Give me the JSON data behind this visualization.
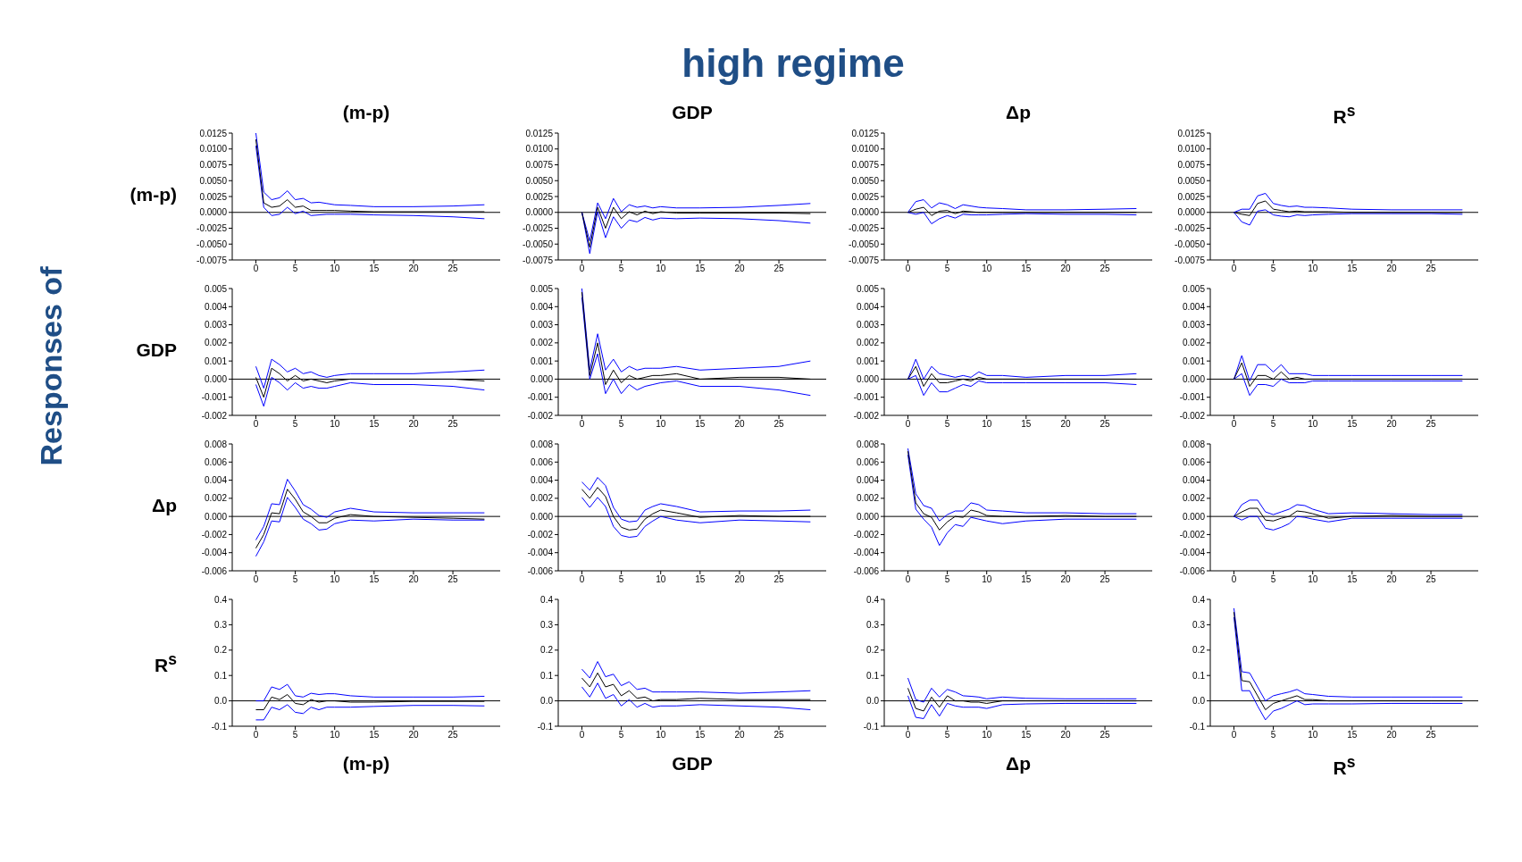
{
  "chart_data": [
    {
      "type": "line",
      "title": "(m-p)",
      "ylabel": "(m-p)",
      "annotations": [
        "high regime",
        "Responses of"
      ],
      "marker": "none",
      "x": [
        0,
        1,
        2,
        3,
        4,
        5,
        6,
        7,
        8,
        9,
        10,
        12,
        15,
        20,
        25,
        29
      ],
      "xlim": [
        -3,
        31
      ],
      "xticks": [
        0,
        5,
        10,
        15,
        20,
        25
      ],
      "ylim": [
        -0.0075,
        0.0125
      ],
      "yticks": [
        {
          "value": -0.0075,
          "label": "-0.0075"
        },
        {
          "value": -0.005,
          "label": "-0.0050"
        },
        {
          "value": -0.0025,
          "label": "-0.0025"
        },
        {
          "value": 0,
          "label": "0.0000"
        },
        {
          "value": 0.0025,
          "label": "0.0025"
        },
        {
          "value": 0.005,
          "label": "0.0050"
        },
        {
          "value": 0.0075,
          "label": "0.0075"
        },
        {
          "value": 0.01,
          "label": "0.0100"
        },
        {
          "value": 0.0125,
          "label": "0.0125"
        }
      ],
      "ref_lines": [
        {
          "axis": "y",
          "value": 0,
          "color": "#000000"
        }
      ],
      "series": [
        {
          "color": "#0000ff",
          "values": [
            0.0105,
            0.0008,
            -0.0005,
            -0.0003,
            0.0008,
            -0.0002,
            0.0002,
            -0.0005,
            -0.0004,
            -0.0003,
            -0.0003,
            -0.0003,
            -0.0004,
            -0.0005,
            -0.0007,
            -0.001
          ]
        },
        {
          "color": "#000000",
          "values": [
            0.0115,
            0.0015,
            0.0008,
            0.001,
            0.002,
            0.0008,
            0.001,
            0.0003,
            0.0003,
            0.0003,
            0.0003,
            0.0002,
            0.0001,
            0.0001,
            0.0001,
            0.0001
          ]
        },
        {
          "color": "#0000ff",
          "values": [
            0.0125,
            0.0032,
            0.002,
            0.0023,
            0.0034,
            0.002,
            0.0022,
            0.0015,
            0.0016,
            0.0014,
            0.0012,
            0.0011,
            0.0009,
            0.0009,
            0.001,
            0.0012
          ]
        }
      ]
    },
    {
      "type": "line",
      "title": "GDP",
      "marker": "none",
      "x": [
        0,
        1,
        2,
        3,
        4,
        5,
        6,
        7,
        8,
        9,
        10,
        12,
        15,
        20,
        25,
        29
      ],
      "xlim": [
        -3,
        31
      ],
      "xticks": [
        0,
        5,
        10,
        15,
        20,
        25
      ],
      "ylim": [
        -0.0075,
        0.0125
      ],
      "yticks": [
        {
          "value": -0.0075,
          "label": "-0.0075"
        },
        {
          "value": -0.005,
          "label": "-0.0050"
        },
        {
          "value": -0.0025,
          "label": "-0.0025"
        },
        {
          "value": 0,
          "label": "0.0000"
        },
        {
          "value": 0.0025,
          "label": "0.0025"
        },
        {
          "value": 0.005,
          "label": "0.0050"
        },
        {
          "value": 0.0075,
          "label": "0.0075"
        },
        {
          "value": 0.01,
          "label": "0.0100"
        },
        {
          "value": 0.0125,
          "label": "0.0125"
        }
      ],
      "ref_lines": [
        {
          "axis": "y",
          "value": 0,
          "color": "#000000"
        }
      ],
      "series": [
        {
          "color": "#0000ff",
          "values": [
            0,
            -0.0065,
            0.0001,
            -0.004,
            -0.0007,
            -0.0025,
            -0.0012,
            -0.0015,
            -0.0008,
            -0.0012,
            -0.0009,
            -0.001,
            -0.0009,
            -0.001,
            -0.0013,
            -0.0017
          ]
        },
        {
          "color": "#000000",
          "values": [
            0,
            -0.0055,
            0.0008,
            -0.0025,
            0.0008,
            -0.001,
            0.0001,
            -0.0004,
            0.0002,
            -0.0002,
            0.0001,
            -0.0001,
            -0.0001,
            -0.0001,
            -0.0001,
            -0.0002
          ]
        },
        {
          "color": "#0000ff",
          "values": [
            0,
            -0.0045,
            0.0015,
            -0.001,
            0.0022,
            0.0001,
            0.0012,
            0.0008,
            0.001,
            0.0007,
            0.0009,
            0.0007,
            0.0007,
            0.0008,
            0.0011,
            0.0014
          ]
        }
      ]
    },
    {
      "type": "line",
      "title": "Δp",
      "marker": "none",
      "x": [
        0,
        1,
        2,
        3,
        4,
        5,
        6,
        7,
        8,
        9,
        10,
        12,
        15,
        20,
        25,
        29
      ],
      "xlim": [
        -3,
        31
      ],
      "xticks": [
        0,
        5,
        10,
        15,
        20,
        25
      ],
      "ylim": [
        -0.0075,
        0.0125
      ],
      "yticks": [
        {
          "value": -0.0075,
          "label": "-0.0075"
        },
        {
          "value": -0.005,
          "label": "-0.0050"
        },
        {
          "value": -0.0025,
          "label": "-0.0025"
        },
        {
          "value": 0,
          "label": "0.0000"
        },
        {
          "value": 0.0025,
          "label": "0.0025"
        },
        {
          "value": 0.005,
          "label": "0.0050"
        },
        {
          "value": 0.0075,
          "label": "0.0075"
        },
        {
          "value": 0.01,
          "label": "0.0100"
        },
        {
          "value": 0.0125,
          "label": "0.0125"
        }
      ],
      "ref_lines": [
        {
          "axis": "y",
          "value": 0,
          "color": "#000000"
        }
      ],
      "series": [
        {
          "color": "#0000ff",
          "values": [
            0,
            -0.0003,
            0,
            -0.0018,
            -0.001,
            -0.0005,
            -0.0009,
            -0.0003,
            -0.0004,
            -0.0004,
            -0.0004,
            -0.0003,
            -0.0002,
            -0.0003,
            -0.0003,
            -0.0004
          ]
        },
        {
          "color": "#000000",
          "values": [
            0,
            0.0005,
            0.0008,
            -0.0005,
            0.0002,
            0.0003,
            -0.0002,
            0.0002,
            0.0001,
            0,
            0,
            0,
            0,
            0,
            0,
            0
          ]
        },
        {
          "color": "#0000ff",
          "values": [
            0,
            0.0017,
            0.002,
            0.0007,
            0.0015,
            0.0012,
            0.0006,
            0.0012,
            0.001,
            0.0008,
            0.0007,
            0.0006,
            0.0004,
            0.0004,
            0.0005,
            0.0006
          ]
        }
      ]
    },
    {
      "type": "line",
      "title": "R$^{s}$",
      "marker": "none",
      "x": [
        0,
        1,
        2,
        3,
        4,
        5,
        6,
        7,
        8,
        9,
        10,
        12,
        15,
        20,
        25,
        29
      ],
      "xlim": [
        -3,
        31
      ],
      "xticks": [
        0,
        5,
        10,
        15,
        20,
        25
      ],
      "ylim": [
        -0.0075,
        0.0125
      ],
      "yticks": [
        {
          "value": -0.0075,
          "label": "-0.0075"
        },
        {
          "value": -0.005,
          "label": "-0.0050"
        },
        {
          "value": -0.0025,
          "label": "-0.0025"
        },
        {
          "value": 0,
          "label": "0.0000"
        },
        {
          "value": 0.0025,
          "label": "0.0025"
        },
        {
          "value": 0.005,
          "label": "0.0050"
        },
        {
          "value": 0.0075,
          "label": "0.0075"
        },
        {
          "value": 0.01,
          "label": "0.0100"
        },
        {
          "value": 0.0125,
          "label": "0.0125"
        }
      ],
      "ref_lines": [
        {
          "axis": "y",
          "value": 0,
          "color": "#000000"
        }
      ],
      "series": [
        {
          "color": "#0000ff",
          "values": [
            0,
            -0.0015,
            -0.002,
            0.0002,
            0.0004,
            -0.0004,
            -0.0006,
            -0.0007,
            -0.0004,
            -0.0005,
            -0.0004,
            -0.0003,
            -0.0002,
            -0.0002,
            -0.0002,
            -0.0003
          ]
        },
        {
          "color": "#000000",
          "values": [
            0,
            -0.0003,
            -0.0005,
            0.0014,
            0.0018,
            0.0005,
            0.0003,
            0.0001,
            0.0002,
            0.0001,
            0.0001,
            0.0001,
            0,
            0,
            0,
            0
          ]
        },
        {
          "color": "#0000ff",
          "values": [
            0,
            0.0005,
            0.0005,
            0.0026,
            0.003,
            0.0014,
            0.0011,
            0.0009,
            0.001,
            0.0008,
            0.0008,
            0.0007,
            0.0005,
            0.0004,
            0.0004,
            0.0004
          ]
        }
      ]
    },
    {
      "type": "line",
      "ylabel": "GDP",
      "marker": "none",
      "x": [
        0,
        1,
        2,
        3,
        4,
        5,
        6,
        7,
        8,
        9,
        10,
        12,
        15,
        20,
        25,
        29
      ],
      "xlim": [
        -3,
        31
      ],
      "xticks": [
        0,
        5,
        10,
        15,
        20,
        25
      ],
      "ylim": [
        -0.002,
        0.005
      ],
      "yticks": [
        {
          "value": -0.002,
          "label": "-0.002"
        },
        {
          "value": -0.001,
          "label": "-0.001"
        },
        {
          "value": 0,
          "label": "0.000"
        },
        {
          "value": 0.001,
          "label": "0.001"
        },
        {
          "value": 0.002,
          "label": "0.002"
        },
        {
          "value": 0.003,
          "label": "0.003"
        },
        {
          "value": 0.004,
          "label": "0.004"
        },
        {
          "value": 0.005,
          "label": "0.005"
        }
      ],
      "ref_lines": [
        {
          "axis": "y",
          "value": 0,
          "color": "#000000"
        }
      ],
      "series": [
        {
          "color": "#0000ff",
          "values": [
            -0.0003,
            -0.0015,
            0.0001,
            -0.0002,
            -0.0006,
            -0.0002,
            -0.0005,
            -0.0004,
            -0.0005,
            -0.0005,
            -0.0004,
            -0.0002,
            -0.0003,
            -0.0003,
            -0.0004,
            -0.0006
          ]
        },
        {
          "color": "#000000",
          "values": [
            0.0001,
            -0.001,
            0.0006,
            0.0003,
            -0.0001,
            0.0002,
            -0.0001,
            0,
            -0.0001,
            -0.0002,
            -0.0001,
            0,
            0,
            0,
            0,
            -0.0001
          ]
        },
        {
          "color": "#0000ff",
          "values": [
            0.0007,
            -0.0005,
            0.0011,
            0.0008,
            0.0004,
            0.0006,
            0.0003,
            0.0004,
            0.0002,
            0.0001,
            0.0002,
            0.0003,
            0.0003,
            0.0003,
            0.0004,
            0.0005
          ]
        }
      ]
    },
    {
      "type": "line",
      "marker": "none",
      "x": [
        0,
        1,
        2,
        3,
        4,
        5,
        6,
        7,
        8,
        9,
        10,
        12,
        15,
        20,
        25,
        29
      ],
      "xlim": [
        -3,
        31
      ],
      "xticks": [
        0,
        5,
        10,
        15,
        20,
        25
      ],
      "ylim": [
        -0.002,
        0.005
      ],
      "yticks": [
        {
          "value": -0.002,
          "label": "-0.002"
        },
        {
          "value": -0.001,
          "label": "-0.001"
        },
        {
          "value": 0,
          "label": "0.000"
        },
        {
          "value": 0.001,
          "label": "0.001"
        },
        {
          "value": 0.002,
          "label": "0.002"
        },
        {
          "value": 0.003,
          "label": "0.003"
        },
        {
          "value": 0.004,
          "label": "0.004"
        },
        {
          "value": 0.005,
          "label": "0.005"
        }
      ],
      "ref_lines": [
        {
          "axis": "y",
          "value": 0,
          "color": "#000000"
        }
      ],
      "series": [
        {
          "color": "#0000ff",
          "values": [
            0.0045,
            0,
            0.0014,
            -0.0008,
            0,
            -0.0008,
            -0.0003,
            -0.0006,
            -0.0004,
            -0.0003,
            -0.0002,
            -0.0001,
            -0.0004,
            -0.0004,
            -0.0006,
            -0.0009
          ]
        },
        {
          "color": "#000000",
          "values": [
            0.0048,
            0.0002,
            0.002,
            -0.0003,
            0.0005,
            -0.0002,
            0.0002,
            0,
            0.0001,
            0.0002,
            0.0002,
            0.0003,
            0,
            0.0001,
            0.0001,
            0
          ]
        },
        {
          "color": "#0000ff",
          "values": [
            0.005,
            0.0005,
            0.0025,
            0.0005,
            0.0011,
            0.0004,
            0.0007,
            0.0005,
            0.0006,
            0.0006,
            0.0006,
            0.0007,
            0.0005,
            0.0006,
            0.0007,
            0.001
          ]
        }
      ]
    },
    {
      "type": "line",
      "marker": "none",
      "x": [
        0,
        1,
        2,
        3,
        4,
        5,
        6,
        7,
        8,
        9,
        10,
        12,
        15,
        20,
        25,
        29
      ],
      "xlim": [
        -3,
        31
      ],
      "xticks": [
        0,
        5,
        10,
        15,
        20,
        25
      ],
      "ylim": [
        -0.002,
        0.005
      ],
      "yticks": [
        {
          "value": -0.002,
          "label": "-0.002"
        },
        {
          "value": -0.001,
          "label": "-0.001"
        },
        {
          "value": 0,
          "label": "0.000"
        },
        {
          "value": 0.001,
          "label": "0.001"
        },
        {
          "value": 0.002,
          "label": "0.002"
        },
        {
          "value": 0.003,
          "label": "0.003"
        },
        {
          "value": 0.004,
          "label": "0.004"
        },
        {
          "value": 0.005,
          "label": "0.005"
        }
      ],
      "ref_lines": [
        {
          "axis": "y",
          "value": 0,
          "color": "#000000"
        }
      ],
      "series": [
        {
          "color": "#0000ff",
          "values": [
            0,
            0.0002,
            -0.0009,
            -0.0002,
            -0.0007,
            -0.0007,
            -0.0005,
            -0.0003,
            -0.0004,
            -0.0001,
            -0.0002,
            -0.0002,
            -0.0002,
            -0.0002,
            -0.0002,
            -0.0003
          ]
        },
        {
          "color": "#000000",
          "values": [
            0,
            0.0007,
            -0.0004,
            0.0003,
            -0.0002,
            -0.0002,
            -0.0001,
            0,
            -0.0001,
            0.0001,
            0,
            0,
            0,
            0,
            0,
            0
          ]
        },
        {
          "color": "#0000ff",
          "values": [
            0,
            0.0011,
            0,
            0.0007,
            0.0003,
            0.0002,
            0.0001,
            0.0002,
            0.0001,
            0.0004,
            0.0002,
            0.0002,
            0.0001,
            0.0002,
            0.0002,
            0.0003
          ]
        }
      ]
    },
    {
      "type": "line",
      "marker": "none",
      "x": [
        0,
        1,
        2,
        3,
        4,
        5,
        6,
        7,
        8,
        9,
        10,
        12,
        15,
        20,
        25,
        29
      ],
      "xlim": [
        -3,
        31
      ],
      "xticks": [
        0,
        5,
        10,
        15,
        20,
        25
      ],
      "ylim": [
        -0.002,
        0.005
      ],
      "yticks": [
        {
          "value": -0.002,
          "label": "-0.002"
        },
        {
          "value": -0.001,
          "label": "-0.001"
        },
        {
          "value": 0,
          "label": "0.000"
        },
        {
          "value": 0.001,
          "label": "0.001"
        },
        {
          "value": 0.002,
          "label": "0.002"
        },
        {
          "value": 0.003,
          "label": "0.003"
        },
        {
          "value": 0.004,
          "label": "0.004"
        },
        {
          "value": 0.005,
          "label": "0.005"
        }
      ],
      "ref_lines": [
        {
          "axis": "y",
          "value": 0,
          "color": "#000000"
        }
      ],
      "series": [
        {
          "color": "#0000ff",
          "values": [
            0,
            0.0003,
            -0.0009,
            -0.0003,
            -0.0003,
            -0.0004,
            0,
            -0.0002,
            -0.0002,
            -0.0002,
            -0.0001,
            -0.0001,
            -0.0001,
            -0.0001,
            -0.0001,
            -0.0001
          ]
        },
        {
          "color": "#000000",
          "values": [
            0,
            0.0009,
            -0.0004,
            0.0002,
            0.0002,
            0,
            0.0004,
            0,
            0.0001,
            0,
            0,
            0,
            0,
            0,
            0,
            0
          ]
        },
        {
          "color": "#0000ff",
          "values": [
            0,
            0.0013,
            -0.0001,
            0.0008,
            0.0008,
            0.0004,
            0.0008,
            0.0003,
            0.0003,
            0.0003,
            0.0002,
            0.0002,
            0.0002,
            0.0002,
            0.0002,
            0.0002
          ]
        }
      ]
    },
    {
      "type": "line",
      "ylabel": "Δp",
      "marker": "none",
      "x": [
        0,
        1,
        2,
        3,
        4,
        5,
        6,
        7,
        8,
        9,
        10,
        12,
        15,
        20,
        25,
        29
      ],
      "xlim": [
        -3,
        31
      ],
      "xticks": [
        0,
        5,
        10,
        15,
        20,
        25
      ],
      "ylim": [
        -0.006,
        0.008
      ],
      "yticks": [
        {
          "value": -0.006,
          "label": "-0.006"
        },
        {
          "value": -0.004,
          "label": "-0.004"
        },
        {
          "value": -0.002,
          "label": "-0.002"
        },
        {
          "value": 0,
          "label": "0.000"
        },
        {
          "value": 0.002,
          "label": "0.002"
        },
        {
          "value": 0.004,
          "label": "0.004"
        },
        {
          "value": 0.006,
          "label": "0.006"
        },
        {
          "value": 0.008,
          "label": "0.008"
        }
      ],
      "ref_lines": [
        {
          "axis": "y",
          "value": 0,
          "color": "#000000"
        }
      ],
      "series": [
        {
          "color": "#0000ff",
          "values": [
            -0.0044,
            -0.0028,
            -0.0005,
            -0.0006,
            0.0021,
            0.001,
            -0.0003,
            -0.0008,
            -0.0015,
            -0.0014,
            -0.0008,
            -0.0004,
            -0.0005,
            -0.0003,
            -0.0004,
            -0.0004
          ]
        },
        {
          "color": "#000000",
          "values": [
            -0.0035,
            -0.002,
            0.0004,
            0.0003,
            0.003,
            0.0019,
            0.0005,
            0,
            -0.0007,
            -0.0007,
            -0.0002,
            0.0002,
            0,
            -0.0001,
            -0.0002,
            -0.0003
          ]
        },
        {
          "color": "#0000ff",
          "values": [
            -0.0026,
            -0.0011,
            0.0014,
            0.0013,
            0.0041,
            0.0028,
            0.0013,
            0.0008,
            0.0001,
            -0.0001,
            0.0005,
            0.0009,
            0.0005,
            0.0004,
            0.0004,
            0.0004
          ]
        }
      ]
    },
    {
      "type": "line",
      "marker": "none",
      "x": [
        0,
        1,
        2,
        3,
        4,
        5,
        6,
        7,
        8,
        9,
        10,
        12,
        15,
        20,
        25,
        29
      ],
      "xlim": [
        -3,
        31
      ],
      "xticks": [
        0,
        5,
        10,
        15,
        20,
        25
      ],
      "ylim": [
        -0.006,
        0.008
      ],
      "yticks": [
        {
          "value": -0.006,
          "label": "-0.006"
        },
        {
          "value": -0.004,
          "label": "-0.004"
        },
        {
          "value": -0.002,
          "label": "-0.002"
        },
        {
          "value": 0,
          "label": "0.000"
        },
        {
          "value": 0.002,
          "label": "0.002"
        },
        {
          "value": 0.004,
          "label": "0.004"
        },
        {
          "value": 0.006,
          "label": "0.006"
        },
        {
          "value": 0.008,
          "label": "0.008"
        }
      ],
      "ref_lines": [
        {
          "axis": "y",
          "value": 0,
          "color": "#000000"
        }
      ],
      "series": [
        {
          "color": "#0000ff",
          "values": [
            0.0021,
            0.001,
            0.0021,
            0.0011,
            -0.0011,
            -0.0021,
            -0.0023,
            -0.0022,
            -0.0011,
            -0.0005,
            0,
            -0.0004,
            -0.0007,
            -0.0004,
            -0.0005,
            -0.0006
          ]
        },
        {
          "color": "#000000",
          "values": [
            0.003,
            0.002,
            0.0032,
            0.0022,
            0,
            -0.0012,
            -0.0015,
            -0.0014,
            -0.0003,
            0.0003,
            0.0007,
            0.0004,
            -0.0001,
            0.0001,
            0,
            0
          ]
        },
        {
          "color": "#0000ff",
          "values": [
            0.0038,
            0.0029,
            0.0043,
            0.0034,
            0.001,
            -0.0003,
            -0.0006,
            -0.0005,
            0.0007,
            0.0011,
            0.0014,
            0.0011,
            0.0005,
            0.0006,
            0.0006,
            0.0007
          ]
        }
      ]
    },
    {
      "type": "line",
      "marker": "none",
      "x": [
        0,
        1,
        2,
        3,
        4,
        5,
        6,
        7,
        8,
        9,
        10,
        12,
        15,
        20,
        25,
        29
      ],
      "xlim": [
        -3,
        31
      ],
      "xticks": [
        0,
        5,
        10,
        15,
        20,
        25
      ],
      "ylim": [
        -0.006,
        0.008
      ],
      "yticks": [
        {
          "value": -0.006,
          "label": "-0.006"
        },
        {
          "value": -0.004,
          "label": "-0.004"
        },
        {
          "value": -0.002,
          "label": "-0.002"
        },
        {
          "value": 0,
          "label": "0.000"
        },
        {
          "value": 0.002,
          "label": "0.002"
        },
        {
          "value": 0.004,
          "label": "0.004"
        },
        {
          "value": 0.006,
          "label": "0.006"
        },
        {
          "value": 0.008,
          "label": "0.008"
        }
      ],
      "ref_lines": [
        {
          "axis": "y",
          "value": 0,
          "color": "#000000"
        }
      ],
      "series": [
        {
          "color": "#0000ff",
          "values": [
            0.0068,
            0.0008,
            -0.0003,
            -0.0012,
            -0.0032,
            -0.0018,
            -0.0009,
            -0.0011,
            -0.0001,
            -0.0003,
            -0.0005,
            -0.0008,
            -0.0005,
            -0.0003,
            -0.0003,
            -0.0003
          ]
        },
        {
          "color": "#000000",
          "values": [
            0.0072,
            0.0015,
            0.0003,
            -0.0001,
            -0.0015,
            -0.0006,
            0,
            -0.0001,
            0.0007,
            0.0005,
            0.0001,
            0,
            0,
            0.0001,
            0,
            0
          ]
        },
        {
          "color": "#0000ff",
          "values": [
            0.0075,
            0.0025,
            0.0012,
            0.0009,
            -0.0005,
            0.0002,
            0.0006,
            0.0006,
            0.0015,
            0.0013,
            0.0007,
            0.0006,
            0.0004,
            0.0004,
            0.0003,
            0.0003
          ]
        }
      ]
    },
    {
      "type": "line",
      "marker": "none",
      "x": [
        0,
        1,
        2,
        3,
        4,
        5,
        6,
        7,
        8,
        9,
        10,
        12,
        15,
        20,
        25,
        29
      ],
      "xlim": [
        -3,
        31
      ],
      "xticks": [
        0,
        5,
        10,
        15,
        20,
        25
      ],
      "ylim": [
        -0.006,
        0.008
      ],
      "yticks": [
        {
          "value": -0.006,
          "label": "-0.006"
        },
        {
          "value": -0.004,
          "label": "-0.004"
        },
        {
          "value": -0.002,
          "label": "-0.002"
        },
        {
          "value": 0,
          "label": "0.000"
        },
        {
          "value": 0.002,
          "label": "0.002"
        },
        {
          "value": 0.004,
          "label": "0.004"
        },
        {
          "value": 0.006,
          "label": "0.006"
        },
        {
          "value": 0.008,
          "label": "0.008"
        }
      ],
      "ref_lines": [
        {
          "axis": "y",
          "value": 0,
          "color": "#000000"
        }
      ],
      "series": [
        {
          "color": "#0000ff",
          "values": [
            0,
            -0.0004,
            0,
            0,
            -0.0013,
            -0.0015,
            -0.0012,
            -0.0008,
            0,
            -0.0001,
            -0.0003,
            -0.0006,
            -0.0002,
            -0.0002,
            -0.0002,
            -0.0002
          ]
        },
        {
          "color": "#000000",
          "values": [
            0,
            0.0005,
            0.0009,
            0.0009,
            -0.0004,
            -0.0005,
            -0.0002,
            0,
            0.0006,
            0.0005,
            0.0003,
            -0.0002,
            0,
            0.0001,
            0,
            0
          ]
        },
        {
          "color": "#0000ff",
          "values": [
            0,
            0.0013,
            0.0018,
            0.0018,
            0.0005,
            0.0002,
            0.0005,
            0.0008,
            0.0013,
            0.0012,
            0.0008,
            0.0003,
            0.0004,
            0.0003,
            0.0002,
            0.0002
          ]
        }
      ]
    },
    {
      "type": "line",
      "ylabel": "R$^{s}$",
      "xlabel": "(m-p)",
      "marker": "none",
      "x": [
        0,
        1,
        2,
        3,
        4,
        5,
        6,
        7,
        8,
        9,
        10,
        12,
        15,
        20,
        25,
        29
      ],
      "xlim": [
        -3,
        31
      ],
      "xticks": [
        0,
        5,
        10,
        15,
        20,
        25
      ],
      "ylim": [
        -0.1,
        0.4
      ],
      "yticks": [
        {
          "value": -0.1,
          "label": "-0.1"
        },
        {
          "value": 0,
          "label": "0.0"
        },
        {
          "value": 0.1,
          "label": "0.1"
        },
        {
          "value": 0.2,
          "label": "0.2"
        },
        {
          "value": 0.3,
          "label": "0.3"
        },
        {
          "value": 0.4,
          "label": "0.4"
        }
      ],
      "ref_lines": [
        {
          "axis": "y",
          "value": 0,
          "color": "#000000"
        }
      ],
      "series": [
        {
          "color": "#0000ff",
          "values": [
            -0.075,
            -0.075,
            -0.025,
            -0.035,
            -0.015,
            -0.045,
            -0.05,
            -0.025,
            -0.035,
            -0.025,
            -0.025,
            -0.025,
            -0.022,
            -0.018,
            -0.018,
            -0.02
          ]
        },
        {
          "color": "#000000",
          "values": [
            -0.035,
            -0.035,
            0.015,
            0.005,
            0.025,
            -0.01,
            -0.015,
            0.005,
            -0.005,
            0,
            0,
            -0.005,
            -0.005,
            -0.002,
            -0.002,
            -0.002
          ]
        },
        {
          "color": "#0000ff",
          "values": [
            0,
            0,
            0.055,
            0.045,
            0.065,
            0.02,
            0.015,
            0.03,
            0.025,
            0.028,
            0.028,
            0.02,
            0.015,
            0.015,
            0.015,
            0.018
          ]
        }
      ]
    },
    {
      "type": "line",
      "xlabel": "GDP",
      "marker": "none",
      "x": [
        0,
        1,
        2,
        3,
        4,
        5,
        6,
        7,
        8,
        9,
        10,
        12,
        15,
        20,
        25,
        29
      ],
      "xlim": [
        -3,
        31
      ],
      "xticks": [
        0,
        5,
        10,
        15,
        20,
        25
      ],
      "ylim": [
        -0.1,
        0.4
      ],
      "yticks": [
        {
          "value": -0.1,
          "label": "-0.1"
        },
        {
          "value": 0,
          "label": "0.0"
        },
        {
          "value": 0.1,
          "label": "0.1"
        },
        {
          "value": 0.2,
          "label": "0.2"
        },
        {
          "value": 0.3,
          "label": "0.3"
        },
        {
          "value": 0.4,
          "label": "0.4"
        }
      ],
      "ref_lines": [
        {
          "axis": "y",
          "value": 0,
          "color": "#000000"
        }
      ],
      "series": [
        {
          "color": "#0000ff",
          "values": [
            0.055,
            0.015,
            0.07,
            0.01,
            0.025,
            -0.02,
            0.005,
            -0.025,
            -0.01,
            -0.025,
            -0.02,
            -0.02,
            -0.015,
            -0.02,
            -0.025,
            -0.035
          ]
        },
        {
          "color": "#000000",
          "values": [
            0.09,
            0.055,
            0.11,
            0.055,
            0.065,
            0.02,
            0.04,
            0.01,
            0.015,
            0,
            0.005,
            0.005,
            0.01,
            0.005,
            0.005,
            0.005
          ]
        },
        {
          "color": "#0000ff",
          "values": [
            0.125,
            0.09,
            0.155,
            0.095,
            0.105,
            0.06,
            0.075,
            0.045,
            0.05,
            0.035,
            0.035,
            0.035,
            0.035,
            0.03,
            0.035,
            0.04
          ]
        }
      ]
    },
    {
      "type": "line",
      "xlabel": "Δp",
      "marker": "none",
      "x": [
        0,
        1,
        2,
        3,
        4,
        5,
        6,
        7,
        8,
        9,
        10,
        12,
        15,
        20,
        25,
        29
      ],
      "xlim": [
        -3,
        31
      ],
      "xticks": [
        0,
        5,
        10,
        15,
        20,
        25
      ],
      "ylim": [
        -0.1,
        0.4
      ],
      "yticks": [
        {
          "value": -0.1,
          "label": "-0.1"
        },
        {
          "value": 0,
          "label": "0.0"
        },
        {
          "value": 0.1,
          "label": "0.1"
        },
        {
          "value": 0.2,
          "label": "0.2"
        },
        {
          "value": 0.3,
          "label": "0.3"
        },
        {
          "value": 0.4,
          "label": "0.4"
        }
      ],
      "ref_lines": [
        {
          "axis": "y",
          "value": 0,
          "color": "#000000"
        }
      ],
      "series": [
        {
          "color": "#0000ff",
          "values": [
            0.02,
            -0.065,
            -0.07,
            -0.015,
            -0.06,
            -0.01,
            -0.02,
            -0.025,
            -0.025,
            -0.025,
            -0.03,
            -0.015,
            -0.012,
            -0.01,
            -0.01,
            -0.01
          ]
        },
        {
          "color": "#000000",
          "values": [
            0.05,
            -0.03,
            -0.04,
            0.015,
            -0.025,
            0.02,
            0,
            0,
            -0.005,
            -0.005,
            -0.01,
            0,
            0,
            0,
            0,
            0
          ]
        },
        {
          "color": "#0000ff",
          "values": [
            0.09,
            0.005,
            -0.005,
            0.05,
            0.015,
            0.045,
            0.035,
            0.02,
            0.018,
            0.015,
            0.008,
            0.015,
            0.01,
            0.008,
            0.008,
            0.008
          ]
        }
      ]
    },
    {
      "type": "line",
      "xlabel": "R$^{s}$",
      "marker": "none",
      "x": [
        0,
        1,
        2,
        3,
        4,
        5,
        6,
        7,
        8,
        9,
        10,
        12,
        15,
        20,
        25,
        29
      ],
      "xlim": [
        -3,
        31
      ],
      "xticks": [
        0,
        5,
        10,
        15,
        20,
        25
      ],
      "ylim": [
        -0.1,
        0.4
      ],
      "yticks": [
        {
          "value": -0.1,
          "label": "-0.1"
        },
        {
          "value": 0,
          "label": "0.0"
        },
        {
          "value": 0.1,
          "label": "0.1"
        },
        {
          "value": 0.2,
          "label": "0.2"
        },
        {
          "value": 0.3,
          "label": "0.3"
        },
        {
          "value": 0.4,
          "label": "0.4"
        }
      ],
      "ref_lines": [
        {
          "axis": "y",
          "value": 0,
          "color": "#000000"
        }
      ],
      "series": [
        {
          "color": "#0000ff",
          "values": [
            0.33,
            0.04,
            0.04,
            -0.02,
            -0.075,
            -0.04,
            -0.03,
            -0.015,
            0,
            -0.015,
            -0.012,
            -0.012,
            -0.012,
            -0.01,
            -0.01,
            -0.01
          ]
        },
        {
          "color": "#000000",
          "values": [
            0.35,
            0.08,
            0.075,
            0.02,
            -0.035,
            -0.01,
            0,
            0.01,
            0.02,
            0.005,
            0.005,
            0,
            0,
            0,
            0,
            0
          ]
        },
        {
          "color": "#0000ff",
          "values": [
            0.365,
            0.115,
            0.11,
            0.055,
            0,
            0.02,
            0.028,
            0.035,
            0.045,
            0.028,
            0.025,
            0.018,
            0.015,
            0.015,
            0.015,
            0.015
          ]
        }
      ]
    }
  ]
}
